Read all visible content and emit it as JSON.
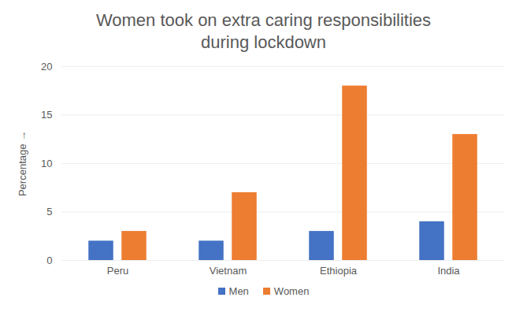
{
  "chart_data": {
    "type": "bar",
    "title": "Women took on extra caring responsibilities during lockdown",
    "categories": [
      "Peru",
      "Vietnam",
      "Ethiopia",
      "India"
    ],
    "series": [
      {
        "name": "Men",
        "color": "#4472c4",
        "values": [
          2,
          2,
          3,
          4
        ]
      },
      {
        "name": "Women",
        "color": "#ed7d31",
        "values": [
          3,
          7,
          18,
          13
        ]
      }
    ],
    "ylabel": "Percentage",
    "ylim": [
      0,
      20
    ],
    "yticks": [
      0,
      5,
      10,
      15,
      20
    ],
    "grid": true,
    "legend": "bottom"
  }
}
